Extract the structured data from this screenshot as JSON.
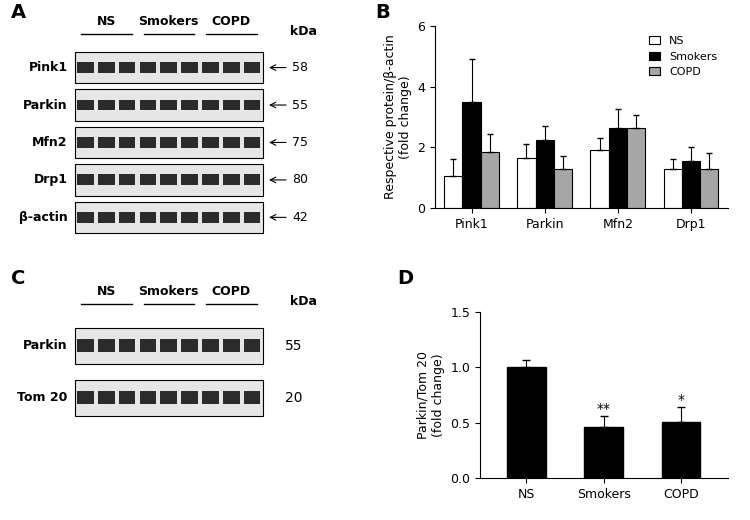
{
  "chart_data": [
    {
      "panel": "B",
      "type": "bar",
      "categories": [
        "Pink1",
        "Parkin",
        "Mfn2",
        "Drp1"
      ],
      "y_label": "Respective protein/β-actin\n(fold change)",
      "series": [
        {
          "name": "NS",
          "color": "#ffffff",
          "values": [
            1.05,
            1.65,
            1.9,
            1.3
          ],
          "errors": [
            0.55,
            0.45,
            0.4,
            0.3
          ]
        },
        {
          "name": "Smokers",
          "color": "#000000",
          "values": [
            3.5,
            2.25,
            2.65,
            1.55
          ],
          "errors": [
            1.4,
            0.45,
            0.6,
            0.45
          ]
        },
        {
          "name": "COPD",
          "color": "#a6a6a6",
          "values": [
            1.85,
            1.3,
            2.65,
            1.27
          ],
          "errors": [
            0.6,
            0.4,
            0.4,
            0.55
          ]
        }
      ],
      "ylim": [
        0,
        6
      ],
      "yticks": [
        0,
        2,
        4,
        6
      ],
      "legend": "upper right"
    },
    {
      "panel": "D",
      "type": "bar",
      "categories": [
        "NS",
        "Smokers",
        "COPD"
      ],
      "values": [
        1.0,
        0.46,
        0.51
      ],
      "errors": [
        0.07,
        0.1,
        0.13
      ],
      "color": "#000000",
      "y_label": "Parkin/Tom 20\n(fold change)",
      "ylim": [
        0,
        1.5
      ],
      "yticks": [
        {
          "value": 0,
          "label": "0.0"
        },
        {
          "value": 0.5,
          "label": "0.5"
        },
        {
          "value": 1.0,
          "label": "1.0"
        },
        {
          "value": 1.5,
          "label": "1.5"
        }
      ],
      "annotations": [
        {
          "category": "Smokers",
          "text": "**"
        },
        {
          "category": "COPD",
          "text": "*"
        }
      ]
    }
  ],
  "blots": [
    {
      "panel": "A",
      "groups": [
        "NS",
        "Smokers",
        "COPD"
      ],
      "unit": "kDa",
      "rows": [
        {
          "name": "Pink1",
          "size": 58
        },
        {
          "name": "Parkin",
          "size": 55
        },
        {
          "name": "Mfn2",
          "size": 75
        },
        {
          "name": "Drp1",
          "size": 80
        },
        {
          "name": "β-actin",
          "size": 42
        }
      ]
    },
    {
      "panel": "C",
      "groups": [
        "NS",
        "Smokers",
        "COPD"
      ],
      "unit": "kDa",
      "rows": [
        {
          "name": "Parkin",
          "size": 55
        },
        {
          "name": "Tom 20",
          "size": 20
        }
      ]
    }
  ]
}
